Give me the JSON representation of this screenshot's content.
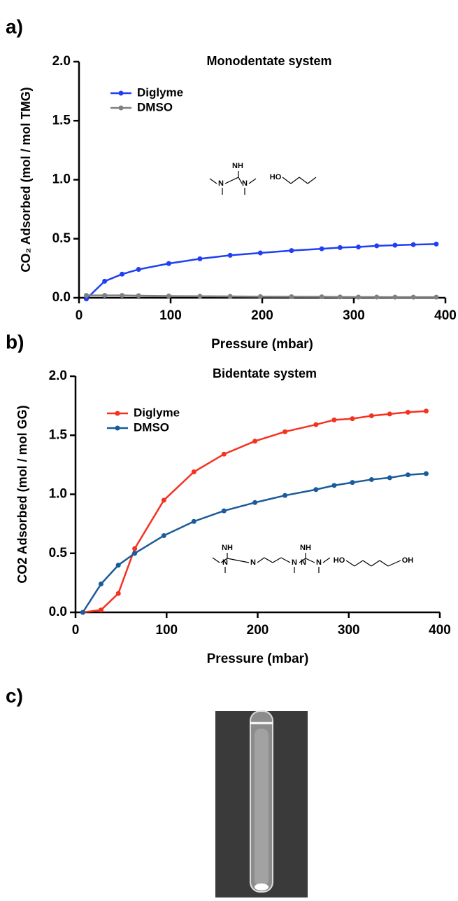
{
  "panel_labels": [
    "a)",
    "b)",
    "c)"
  ],
  "chart_data": [
    {
      "type": "line",
      "title": "Monodentate system",
      "xlabel": "Pressure (mbar)",
      "ylabel": "CO₂ Adsorbed (mol / mol TMG)",
      "x": [
        8,
        28,
        47,
        65,
        98,
        132,
        165,
        198,
        232,
        265,
        285,
        305,
        325,
        345,
        365,
        390
      ],
      "series": [
        {
          "name": "Diglyme",
          "color": "#1f3ff5",
          "values": [
            -0.01,
            0.14,
            0.2,
            0.24,
            0.29,
            0.33,
            0.36,
            0.38,
            0.4,
            0.415,
            0.425,
            0.43,
            0.44,
            0.445,
            0.45,
            0.455
          ]
        },
        {
          "name": "DMSO",
          "color": "#808080",
          "values": [
            0.02,
            0.02,
            0.02,
            0.018,
            0.015,
            0.013,
            0.012,
            0.01,
            0.009,
            0.008,
            0.007,
            0.006,
            0.006,
            0.005,
            0.005,
            0.005
          ]
        }
      ],
      "xlim": [
        0,
        400
      ],
      "ylim": [
        0,
        2
      ],
      "xticks": [
        0,
        100,
        200,
        300,
        400
      ],
      "yticks": [
        {
          "value": 0,
          "label": "0.0"
        },
        {
          "value": 0.5,
          "label": "0.5"
        },
        {
          "value": 1,
          "label": "1.0"
        },
        {
          "value": 1.5,
          "label": "1.5"
        },
        {
          "value": 2,
          "label": "2.0"
        }
      ],
      "legend": "upper left",
      "structure_labels": [
        "NH",
        "N",
        "N",
        "HO"
      ]
    },
    {
      "type": "line",
      "title": "Bidentate system",
      "xlabel": "Pressure (mbar)",
      "ylabel": "CO2 Adsorbed (mol / mol GG)",
      "x": [
        8,
        28,
        47,
        65,
        97,
        130,
        163,
        197,
        230,
        264,
        284,
        304,
        325,
        345,
        365,
        385
      ],
      "series": [
        {
          "name": "Diglyme",
          "color": "#f5321f",
          "values": [
            0.0,
            0.02,
            0.16,
            0.54,
            0.95,
            1.19,
            1.34,
            1.45,
            1.53,
            1.59,
            1.63,
            1.64,
            1.665,
            1.68,
            1.695,
            1.705
          ]
        },
        {
          "name": "DMSO",
          "color": "#1a5b9a",
          "values": [
            0.0,
            0.24,
            0.4,
            0.5,
            0.65,
            0.77,
            0.86,
            0.93,
            0.99,
            1.04,
            1.075,
            1.1,
            1.125,
            1.14,
            1.165,
            1.175
          ]
        }
      ],
      "xlim": [
        0,
        400
      ],
      "ylim": [
        0,
        2
      ],
      "xticks": [
        0,
        100,
        200,
        300,
        400
      ],
      "yticks": [
        {
          "value": 0,
          "label": "0.0"
        },
        {
          "value": 0.5,
          "label": "0.5"
        },
        {
          "value": 1,
          "label": "1.0"
        },
        {
          "value": 1.5,
          "label": "1.5"
        },
        {
          "value": 2,
          "label": "2.0"
        }
      ],
      "legend": "upper left",
      "structure_labels": [
        "NH",
        "N",
        "N",
        "N",
        "NH",
        "N",
        "N",
        "HO",
        "OH"
      ]
    }
  ]
}
